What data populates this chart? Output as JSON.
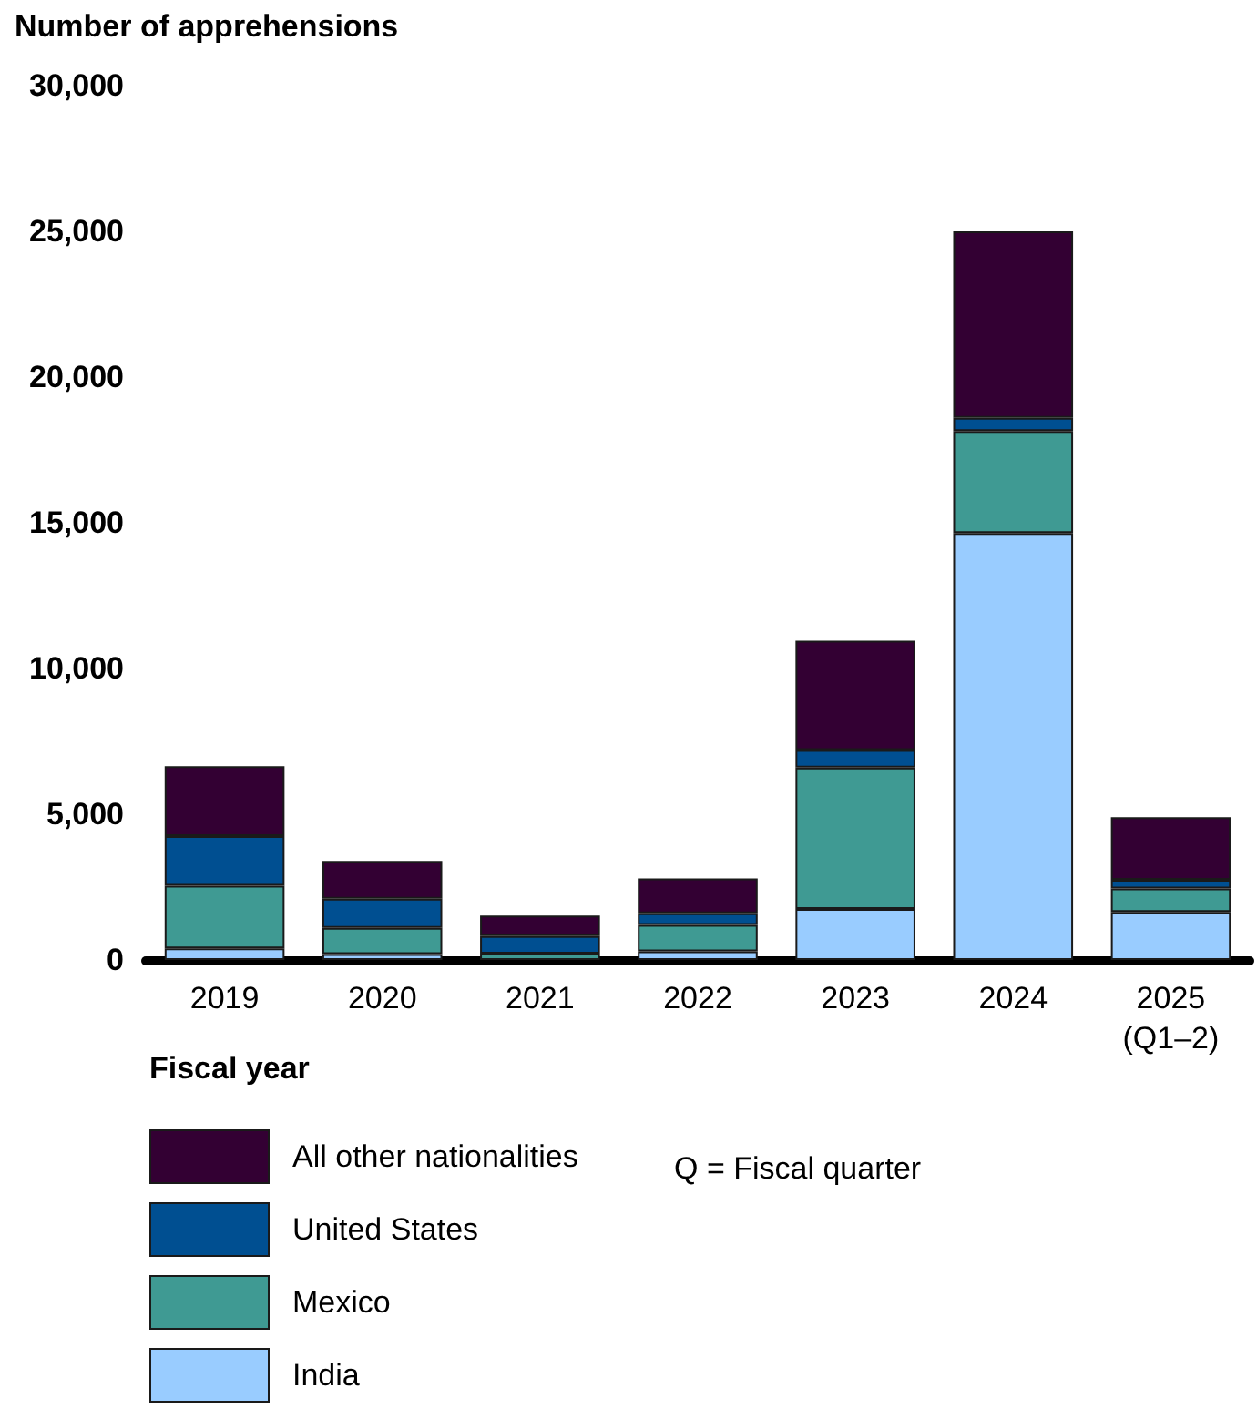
{
  "chart_data": {
    "type": "bar",
    "stacked": true,
    "ylabel": "Number of apprehensions",
    "xlabel": "Fiscal year",
    "categories": [
      "2019",
      "2020",
      "2021",
      "2022",
      "2023",
      "2024",
      "2025\n(Q1–2)"
    ],
    "series": [
      {
        "name": "India",
        "color": "#99ccff",
        "values": [
          400,
          200,
          null,
          300,
          1750,
          14650,
          1650
        ]
      },
      {
        "name": "Mexico",
        "color": "#3f9a93",
        "values": [
          2150,
          900,
          220,
          900,
          4850,
          3500,
          800
        ]
      },
      {
        "name": "United States",
        "color": "#004f91",
        "values": [
          1700,
          1000,
          600,
          400,
          600,
          450,
          300
        ]
      },
      {
        "name": "All other nationalities",
        "color": "#330033",
        "values": [
          2400,
          1300,
          700,
          1200,
          3750,
          6400,
          2150
        ]
      }
    ],
    "ylim": [
      0,
      30000
    ],
    "yticks": [
      0,
      {
        "value": 5000,
        "label": "5,000"
      },
      {
        "value": 10000,
        "label": "10,000"
      },
      {
        "value": 15000,
        "label": "15,000"
      },
      {
        "value": 20000,
        "label": "20,000"
      },
      {
        "value": 25000,
        "label": "25,000"
      },
      {
        "value": 30000,
        "label": "30,000"
      }
    ],
    "grid": false,
    "legend": "bottom",
    "annotations": [
      "Q = Fiscal quarter"
    ]
  }
}
